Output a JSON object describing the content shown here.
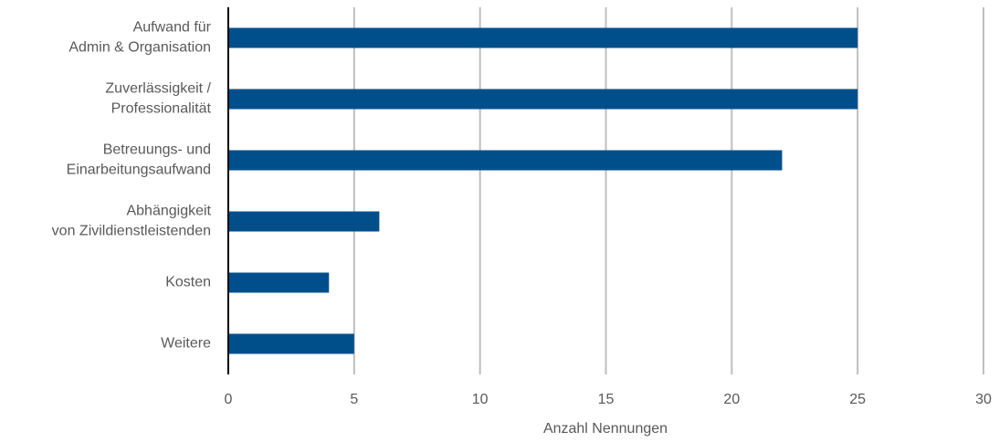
{
  "chart_data": {
    "type": "bar",
    "orientation": "horizontal",
    "xlabel": "Anzahl Nennungen",
    "categories": [
      "Aufwand für\nAdmin & Organisation",
      "Zuverlässigkeit /\nProfessionalität",
      "Betreuungs- und\nEinarbeitungsaufwand",
      "Abhängigkeit\nvon Zivildienstleistenden",
      "Kosten",
      "Weitere"
    ],
    "values": [
      25,
      25,
      22,
      6,
      4,
      5
    ],
    "color": "#004f8b",
    "xlim": [
      0,
      30
    ],
    "xticks": [
      0,
      5,
      10,
      15,
      20,
      25,
      30
    ],
    "grid": true
  }
}
